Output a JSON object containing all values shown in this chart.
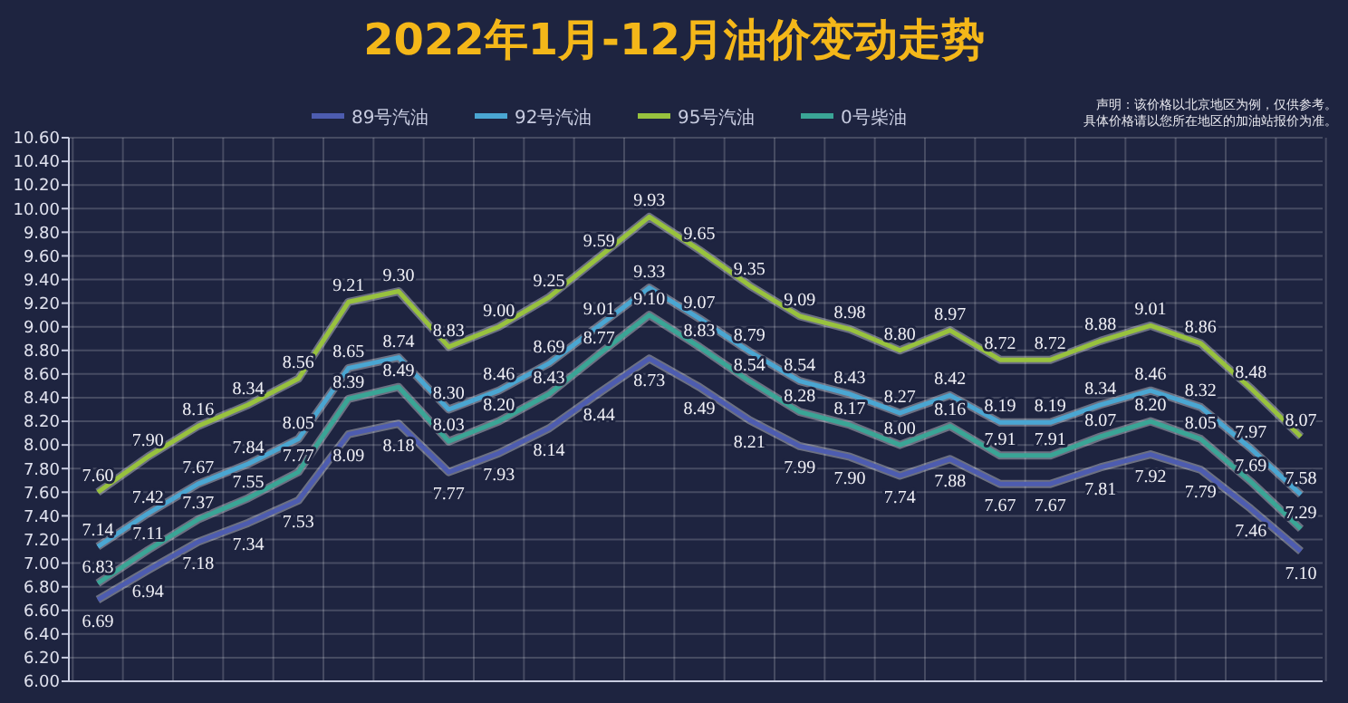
{
  "chart_data": {
    "type": "line",
    "title": "2022年1月-12月油价变动走势",
    "annotations": [
      "声明：该价格以北京地区为例，仅供参考。",
      "具体价格请以您所在地区的加油站报价为准。"
    ],
    "categories": [
      null,
      null,
      null,
      null,
      null,
      null,
      null,
      null,
      null,
      null,
      null,
      null,
      null,
      null,
      null,
      null,
      null,
      null,
      null,
      null,
      null,
      null,
      null,
      null,
      null
    ],
    "series": [
      {
        "name": "89号汽油",
        "color": "#4d5cb0",
        "values": [
          6.69,
          6.94,
          7.18,
          7.34,
          7.53,
          8.09,
          8.18,
          7.77,
          7.93,
          8.14,
          8.44,
          8.73,
          8.49,
          8.21,
          7.99,
          7.9,
          7.74,
          7.88,
          7.67,
          7.67,
          7.81,
          7.92,
          7.79,
          7.46,
          7.1
        ],
        "value_labels": [
          "6.69",
          "6.94",
          "7.18",
          "7.34",
          "7.53",
          "8.09",
          "8.18",
          "7.77",
          "7.93",
          "8.14",
          "8.44",
          "8.73",
          "8.49",
          "8.21",
          "7.99",
          "7.90",
          "7.74",
          "7.88",
          "7.67",
          "7.67",
          "7.81",
          "7.92",
          "7.79",
          "7.46",
          "7.10"
        ]
      },
      {
        "name": "92号汽油",
        "color": "#4aa6d2",
        "values": [
          7.14,
          7.42,
          7.67,
          7.84,
          8.05,
          8.65,
          8.74,
          8.3,
          8.46,
          8.69,
          9.01,
          9.33,
          9.07,
          8.79,
          8.54,
          8.43,
          8.27,
          8.42,
          8.19,
          8.19,
          8.34,
          8.46,
          8.32,
          7.97,
          7.58
        ],
        "value_labels": [
          "7.14",
          "7.42",
          "7.67",
          "7.84",
          "8.05",
          "8.65",
          "8.74",
          "8.30",
          "8.46",
          "8.69",
          "9.01",
          "9.33",
          "9.07",
          "8.79",
          "8.54",
          "8.43",
          "8.27",
          "8.42",
          "8.19",
          "8.19",
          "8.34",
          "8.46",
          "8.32",
          "7.97",
          "7.58"
        ]
      },
      {
        "name": "95号汽油",
        "color": "#98c23e",
        "values": [
          7.6,
          7.9,
          8.16,
          8.34,
          8.56,
          9.21,
          9.3,
          8.83,
          9.0,
          9.25,
          9.59,
          9.93,
          9.65,
          9.35,
          9.09,
          8.98,
          8.8,
          8.97,
          8.72,
          8.72,
          8.88,
          9.01,
          8.86,
          8.48,
          8.07
        ],
        "value_labels": [
          "7.60",
          "7.90",
          "8.16",
          "8.34",
          "8.56",
          "9.21",
          "9.30",
          "8.83",
          "9.00",
          "9.25",
          "9.59",
          "9.93",
          "9.65",
          "9.35",
          "9.09",
          "8.98",
          "8.80",
          "8.97",
          "8.72",
          "8.72",
          "8.88",
          "9.01",
          "8.86",
          "8.48",
          "8.07"
        ]
      },
      {
        "name": "0号柴油",
        "color": "#3aa596",
        "values": [
          6.83,
          7.11,
          7.37,
          7.55,
          7.77,
          8.39,
          8.49,
          8.03,
          8.2,
          8.43,
          8.77,
          9.1,
          8.83,
          8.54,
          8.28,
          8.17,
          8.0,
          8.16,
          7.91,
          7.91,
          8.07,
          8.2,
          8.05,
          7.69,
          7.29
        ],
        "value_labels": [
          "6.83",
          "7.11",
          "7.37",
          "7.55",
          "7.77",
          "8.39",
          "8.49",
          "8.03",
          "8.20",
          "8.43",
          "8.77",
          "9.10",
          "8.83",
          "8.54",
          "8.28",
          "8.17",
          "8.00",
          "8.16",
          "7.91",
          "7.91",
          "8.07",
          "8.20",
          "8.05",
          "7.69",
          "7.29"
        ]
      }
    ],
    "ylim": [
      6,
      10.6
    ],
    "yticks": [
      {
        "value": 6,
        "label": "6.00"
      },
      {
        "value": 6.2,
        "label": "6.20"
      },
      {
        "value": 6.4,
        "label": "6.40"
      },
      {
        "value": 6.6,
        "label": "6.60"
      },
      {
        "value": 6.8,
        "label": "6.80"
      },
      {
        "value": 7,
        "label": "7.00"
      },
      {
        "value": 7.2,
        "label": "7.20"
      },
      {
        "value": 7.4,
        "label": "7.40"
      },
      {
        "value": 7.6,
        "label": "7.60"
      },
      {
        "value": 7.8,
        "label": "7.80"
      },
      {
        "value": 8,
        "label": "8.00"
      },
      {
        "value": 8.2,
        "label": "8.20"
      },
      {
        "value": 8.4,
        "label": "8.40"
      },
      {
        "value": 8.6,
        "label": "8.60"
      },
      {
        "value": 8.8,
        "label": "8.80"
      },
      {
        "value": 9,
        "label": "9.00"
      },
      {
        "value": 9.2,
        "label": "9.20"
      },
      {
        "value": 9.4,
        "label": "9.40"
      },
      {
        "value": 9.6,
        "label": "9.60"
      },
      {
        "value": 9.8,
        "label": "9.80"
      },
      {
        "value": 10,
        "label": "10.00"
      },
      {
        "value": 10.2,
        "label": "10.20"
      },
      {
        "value": 10.4,
        "label": "10.40"
      },
      {
        "value": 10.6,
        "label": "10.60"
      }
    ],
    "grid": true,
    "legend": "top",
    "marker": "none",
    "line_style": "solid"
  }
}
